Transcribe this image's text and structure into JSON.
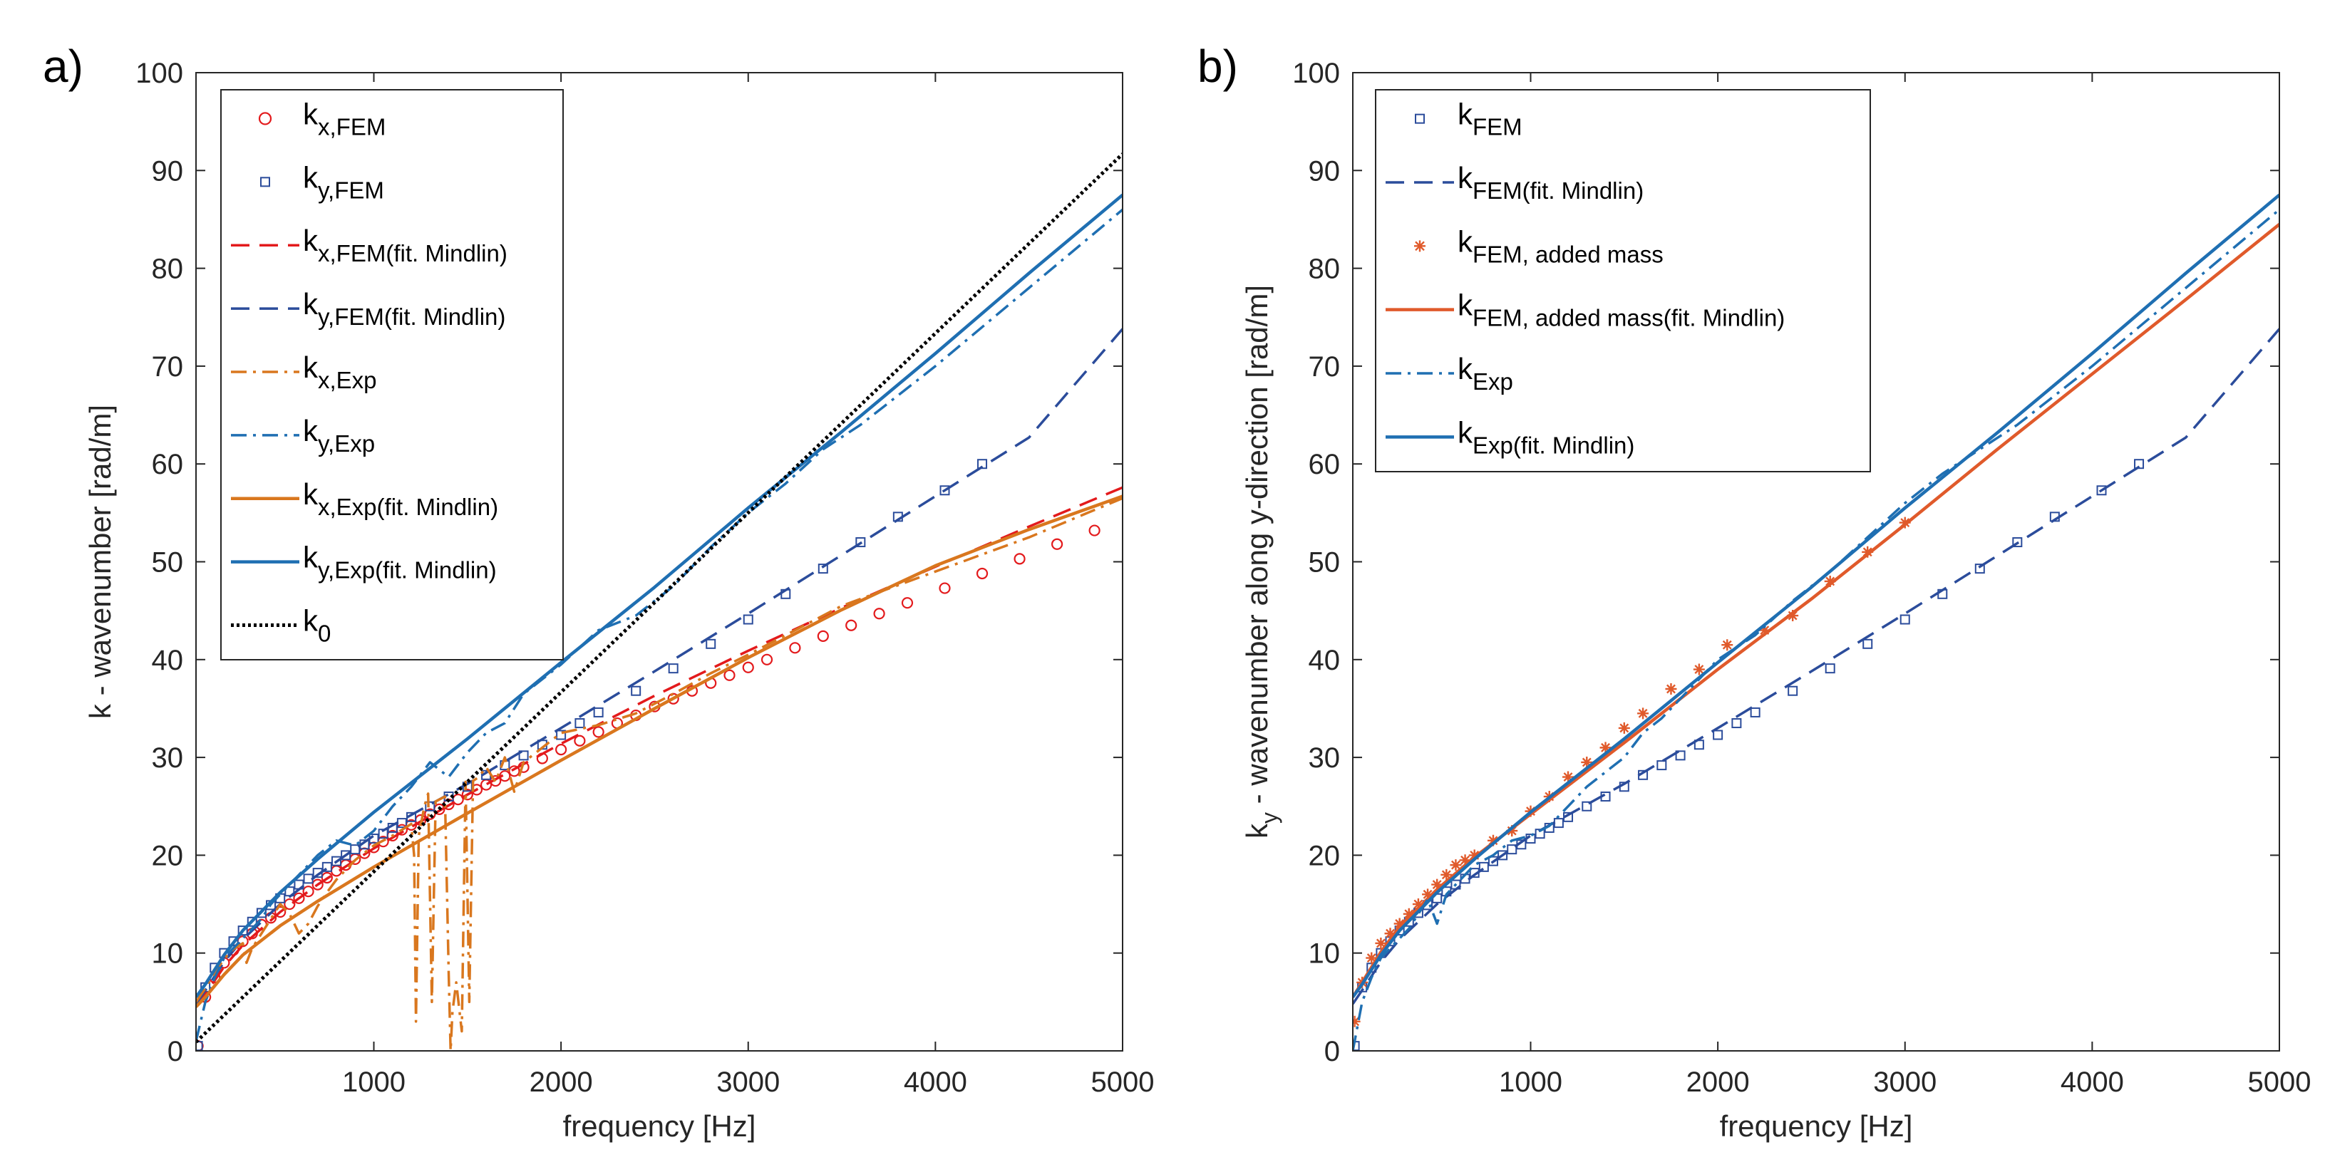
{
  "chart_data": [
    {
      "panel_label": "a)",
      "type": "line",
      "xlabel": "frequency [Hz]",
      "ylabel": "k - wavenumber [rad/m]",
      "xlim": [
        50,
        5000
      ],
      "ylim": [
        0,
        100
      ],
      "xticks": [
        1000,
        2000,
        3000,
        4000,
        5000
      ],
      "yticks": [
        0,
        10,
        20,
        30,
        40,
        50,
        60,
        70,
        80,
        90,
        100
      ],
      "grid": false,
      "legend_position": "top-left",
      "series": [
        {
          "name": "k_x,FEM",
          "base": "k",
          "sub": "x,FEM",
          "color": "#e31a1c",
          "style": "marker",
          "marker": "circle",
          "x": [
            60,
            100,
            150,
            200,
            250,
            300,
            350,
            400,
            450,
            500,
            550,
            600,
            650,
            700,
            750,
            800,
            850,
            900,
            950,
            1000,
            1050,
            1100,
            1150,
            1200,
            1250,
            1300,
            1350,
            1400,
            1450,
            1500,
            1550,
            1600,
            1650,
            1700,
            1750,
            1800,
            1900,
            2000,
            2100,
            2200,
            2300,
            2400,
            2500,
            2600,
            2700,
            2800,
            2900,
            3000,
            3100,
            3250,
            3400,
            3550,
            3700,
            3850,
            4050,
            4250,
            4450,
            4650,
            4850
          ],
          "y": [
            0.5,
            5.5,
            7.5,
            9,
            10.3,
            11.2,
            12,
            12.9,
            13.6,
            14.2,
            15,
            15.6,
            16.3,
            17,
            17.7,
            18.4,
            19,
            19.6,
            20.2,
            20.8,
            21.4,
            22,
            22.6,
            23.1,
            23.6,
            24.2,
            24.7,
            25.2,
            25.7,
            26.2,
            26.7,
            27.2,
            27.6,
            28.1,
            28.6,
            29,
            29.9,
            30.8,
            31.7,
            32.6,
            33.5,
            34.3,
            35.2,
            36,
            36.8,
            37.6,
            38.4,
            39.2,
            40,
            41.2,
            42.4,
            43.5,
            44.7,
            45.8,
            47.3,
            48.8,
            50.3,
            51.8,
            53.2
          ]
        },
        {
          "name": "k_y,FEM",
          "base": "k",
          "sub": "y,FEM",
          "color": "#2b4c9b",
          "style": "marker",
          "marker": "square",
          "x": [
            60,
            100,
            150,
            200,
            250,
            300,
            350,
            400,
            450,
            500,
            550,
            600,
            650,
            700,
            750,
            800,
            850,
            900,
            950,
            1000,
            1050,
            1100,
            1150,
            1200,
            1300,
            1400,
            1500,
            1600,
            1700,
            1800,
            1900,
            2000,
            2100,
            2200,
            2400,
            2600,
            2800,
            3000,
            3200,
            3400,
            3600,
            3800,
            4050,
            4250
          ],
          "y": [
            0.5,
            6.5,
            8.5,
            10,
            11.2,
            12.3,
            13.2,
            14.1,
            14.9,
            15.6,
            16.3,
            17,
            17.6,
            18.2,
            18.8,
            19.4,
            20,
            20.6,
            21.1,
            21.7,
            22.2,
            22.8,
            23.3,
            23.9,
            25,
            26,
            27,
            28.2,
            29.2,
            30.2,
            31.3,
            32.3,
            33.5,
            34.6,
            36.8,
            39.1,
            41.6,
            44.1,
            46.7,
            49.3,
            52,
            54.6,
            57.3,
            60
          ]
        },
        {
          "name": "k_x,FEM(fit. Mindlin)",
          "base": "k",
          "sub": "x,FEM(fit. Mindlin)",
          "color": "#e31a1c",
          "style": "dashed",
          "x": [
            50,
            100,
            200,
            300,
            500,
            700,
            1000,
            1500,
            2000,
            2500,
            3000,
            3500,
            4000,
            4500,
            5000
          ],
          "y": [
            4.5,
            5.8,
            8.6,
            10.8,
            14.2,
            17,
            20.7,
            26.2,
            31.4,
            36.3,
            40.9,
            45.3,
            49.5,
            53.6,
            57.6
          ]
        },
        {
          "name": "k_y,FEM(fit. Mindlin)",
          "base": "k",
          "sub": "y,FEM(fit. Mindlin)",
          "color": "#2b4c9b",
          "style": "dashed",
          "x": [
            50,
            100,
            200,
            300,
            500,
            700,
            1000,
            1500,
            2000,
            2500,
            3000,
            3500,
            4000,
            4500,
            5000
          ],
          "y": [
            4.8,
            6.2,
            9.1,
            11.4,
            15,
            18,
            22,
            27.3,
            33,
            38.8,
            44.7,
            50.7,
            56.7,
            62.7,
            73.8
          ]
        },
        {
          "name": "k_x,Exp",
          "base": "k",
          "sub": "x,Exp",
          "color": "#d9771e",
          "style": "dashdot",
          "x": [
            50,
            100,
            150,
            200,
            250,
            300,
            320,
            350,
            400,
            450,
            500,
            550,
            600,
            650,
            700,
            750,
            800,
            900,
            1000,
            1100,
            1200,
            1215,
            1225,
            1240,
            1270,
            1290,
            1310,
            1330,
            1380,
            1400,
            1410,
            1420,
            1440,
            1470,
            1490,
            1510,
            1530,
            1560,
            1600,
            1650,
            1700,
            1750,
            1800,
            1900,
            2000,
            2200,
            2400,
            2600,
            2800,
            3000,
            3200,
            3500,
            4000,
            4500,
            5000
          ],
          "y": [
            5,
            6.4,
            8,
            9.4,
            10.4,
            11,
            9,
            10.5,
            12,
            13.5,
            15,
            14,
            12,
            13,
            14.8,
            16.2,
            17.5,
            19.5,
            21,
            22,
            23.2,
            20,
            3,
            22,
            25,
            26.3,
            5,
            25.5,
            26,
            8,
            0,
            4,
            7,
            2,
            27.5,
            5,
            27.6,
            28,
            29,
            27.5,
            30,
            26.5,
            29.5,
            31,
            32.5,
            33.3,
            34.5,
            36.5,
            38.6,
            40.5,
            42.5,
            45.5,
            49,
            52.5,
            56.5
          ]
        },
        {
          "name": "k_y,Exp",
          "base": "k",
          "sub": "y,Exp",
          "color": "#1f6fb2",
          "style": "dashdot",
          "x": [
            50,
            100,
            150,
            200,
            250,
            300,
            350,
            400,
            450,
            500,
            600,
            700,
            800,
            900,
            1000,
            1100,
            1200,
            1300,
            1400,
            1500,
            1600,
            1700,
            1800,
            1900,
            2000,
            2200,
            2400,
            2600,
            2800,
            3000,
            3200,
            3400,
            3600,
            4000,
            4500,
            5000
          ],
          "y": [
            1,
            5,
            7.5,
            9.5,
            10.5,
            11.5,
            12.5,
            13.5,
            15,
            16,
            18,
            20,
            21.5,
            21,
            22.5,
            25,
            27,
            29.5,
            28,
            30.5,
            32.5,
            33.5,
            36.5,
            38,
            39.5,
            43,
            44.5,
            47.5,
            51.5,
            55,
            58,
            61.5,
            64,
            70,
            78,
            86
          ]
        },
        {
          "name": "k_x,Exp(fit. Mindlin)",
          "base": "k",
          "sub": "x,Exp(fit. Mindlin)",
          "color": "#d9771e",
          "style": "solid",
          "x": [
            50,
            100,
            200,
            300,
            500,
            700,
            1000,
            1500,
            2000,
            2500,
            3000,
            3500,
            4000,
            4500,
            5000
          ],
          "y": [
            4.5,
            5.5,
            7.8,
            9.8,
            12.8,
            15.3,
            18.8,
            24.3,
            29.7,
            35,
            40.2,
            45.1,
            49.6,
            53.3,
            56.7
          ]
        },
        {
          "name": "k_y,Exp(fit. Mindlin)",
          "base": "k",
          "sub": "y,Exp(fit. Mindlin)",
          "color": "#1f6fb2",
          "style": "solid",
          "x": [
            50,
            100,
            200,
            300,
            500,
            700,
            1000,
            1500,
            2000,
            2500,
            3000,
            3500,
            4000,
            4500,
            5000
          ],
          "y": [
            5.5,
            6.8,
            9.8,
            12.3,
            16.2,
            19.6,
            24.4,
            31.9,
            39.7,
            47.4,
            55.5,
            63.3,
            71.3,
            79.5,
            87.5
          ]
        },
        {
          "name": "k_0",
          "base": "k",
          "sub": "0",
          "color": "#000000",
          "style": "dotted",
          "x": [
            50,
            5000
          ],
          "y": [
            0.9,
            91.7
          ]
        }
      ]
    },
    {
      "panel_label": "b)",
      "type": "line",
      "xlabel": "frequency [Hz]",
      "ylabel": "k - wavenumber along y-direction [rad/m]",
      "ylabel_base": "k",
      "ylabel_sub": "y",
      "ylabel_rest": " - wavenumber along y-direction [rad/m]",
      "xlim": [
        50,
        5000
      ],
      "ylim": [
        0,
        100
      ],
      "xticks": [
        1000,
        2000,
        3000,
        4000,
        5000
      ],
      "yticks": [
        0,
        10,
        20,
        30,
        40,
        50,
        60,
        70,
        80,
        90,
        100
      ],
      "grid": false,
      "legend_position": "top-left",
      "series": [
        {
          "name": "k_FEM",
          "base": "k",
          "sub": "FEM",
          "color": "#2b4c9b",
          "style": "marker",
          "marker": "square",
          "x": [
            60,
            100,
            150,
            200,
            250,
            300,
            350,
            400,
            450,
            500,
            550,
            600,
            650,
            700,
            750,
            800,
            850,
            900,
            950,
            1000,
            1050,
            1100,
            1150,
            1200,
            1300,
            1400,
            1500,
            1600,
            1700,
            1800,
            1900,
            2000,
            2100,
            2200,
            2400,
            2600,
            2800,
            3000,
            3200,
            3400,
            3600,
            3800,
            4050,
            4250
          ],
          "y": [
            0.5,
            6.5,
            8.5,
            10,
            11.2,
            12.3,
            13.2,
            14.1,
            14.9,
            15.6,
            16.3,
            17,
            17.6,
            18.2,
            18.8,
            19.4,
            20,
            20.6,
            21.1,
            21.7,
            22.2,
            22.8,
            23.3,
            23.9,
            25,
            26,
            27,
            28.2,
            29.2,
            30.2,
            31.3,
            32.3,
            33.5,
            34.6,
            36.8,
            39.1,
            41.6,
            44.1,
            46.7,
            49.3,
            52,
            54.6,
            57.3,
            60
          ]
        },
        {
          "name": "k_FEM(fit. Mindlin)",
          "base": "k",
          "sub": "FEM(fit. Mindlin)",
          "color": "#2b4c9b",
          "style": "dashed",
          "x": [
            50,
            100,
            200,
            300,
            500,
            700,
            1000,
            1500,
            2000,
            2500,
            3000,
            3500,
            4000,
            4500,
            5000
          ],
          "y": [
            4.8,
            6.2,
            9.1,
            11.4,
            15,
            18,
            22,
            27.3,
            33,
            38.8,
            44.7,
            50.7,
            56.7,
            62.7,
            73.8
          ]
        },
        {
          "name": "k_FEM, added mass",
          "base": "k",
          "sub": "FEM, added mass",
          "color": "#e05a2b",
          "style": "marker",
          "marker": "star",
          "x": [
            60,
            100,
            150,
            200,
            250,
            300,
            350,
            400,
            450,
            500,
            550,
            600,
            650,
            700,
            800,
            900,
            1000,
            1100,
            1200,
            1300,
            1400,
            1500,
            1600,
            1750,
            1900,
            2050,
            2250,
            2400,
            2600,
            2800,
            3000
          ],
          "y": [
            3,
            7,
            9.5,
            11,
            12,
            13,
            14,
            15,
            16,
            17,
            18,
            19,
            19.5,
            20,
            21.5,
            22.5,
            24.5,
            26,
            28,
            29.5,
            31,
            33,
            34.5,
            37,
            39,
            41.5,
            43,
            44.5,
            48,
            51,
            54
          ]
        },
        {
          "name": "k_FEM, added mass(fit. Mindlin)",
          "base": "k",
          "sub": "FEM, added mass(fit. Mindlin)",
          "color": "#e05a2b",
          "style": "solid",
          "x": [
            50,
            100,
            200,
            300,
            500,
            700,
            1000,
            1500,
            2000,
            2500,
            3000,
            3500,
            4000,
            4500,
            5000
          ],
          "y": [
            5.5,
            7,
            10.1,
            12.7,
            16.5,
            19.8,
            24.2,
            31.5,
            39,
            46.2,
            53.8,
            61.6,
            69.2,
            76.8,
            84.5
          ]
        },
        {
          "name": "k_Exp",
          "base": "k",
          "sub": "Exp",
          "color": "#1f6fb2",
          "style": "dashdot",
          "x": [
            50,
            100,
            150,
            200,
            250,
            300,
            350,
            400,
            450,
            500,
            550,
            600,
            700,
            800,
            900,
            1000,
            1100,
            1200,
            1300,
            1400,
            1500,
            1600,
            1700,
            1800,
            1900,
            2000,
            2200,
            2400,
            2600,
            2800,
            3000,
            3200,
            3400,
            3600,
            4000,
            4500,
            5000
          ],
          "y": [
            0,
            5,
            7.5,
            9.5,
            10.5,
            11.5,
            12.5,
            14,
            15.5,
            13,
            16,
            17,
            19,
            20,
            21.5,
            22,
            23,
            25,
            27,
            28.5,
            30,
            32.5,
            34,
            36,
            38,
            40,
            42.5,
            46,
            49,
            52.5,
            56,
            59,
            61.5,
            64,
            70,
            78,
            86
          ]
        },
        {
          "name": "k_Exp(fit. Mindlin)",
          "base": "k",
          "sub": "Exp(fit. Mindlin)",
          "color": "#1f6fb2",
          "style": "solid",
          "x": [
            50,
            100,
            200,
            300,
            500,
            700,
            1000,
            1500,
            2000,
            2500,
            3000,
            3500,
            4000,
            4500,
            5000
          ],
          "y": [
            5.5,
            6.8,
            9.8,
            12.3,
            16.2,
            19.6,
            24.4,
            31.9,
            39.7,
            47.4,
            55.5,
            63.3,
            71.3,
            79.5,
            87.5
          ]
        }
      ]
    }
  ]
}
